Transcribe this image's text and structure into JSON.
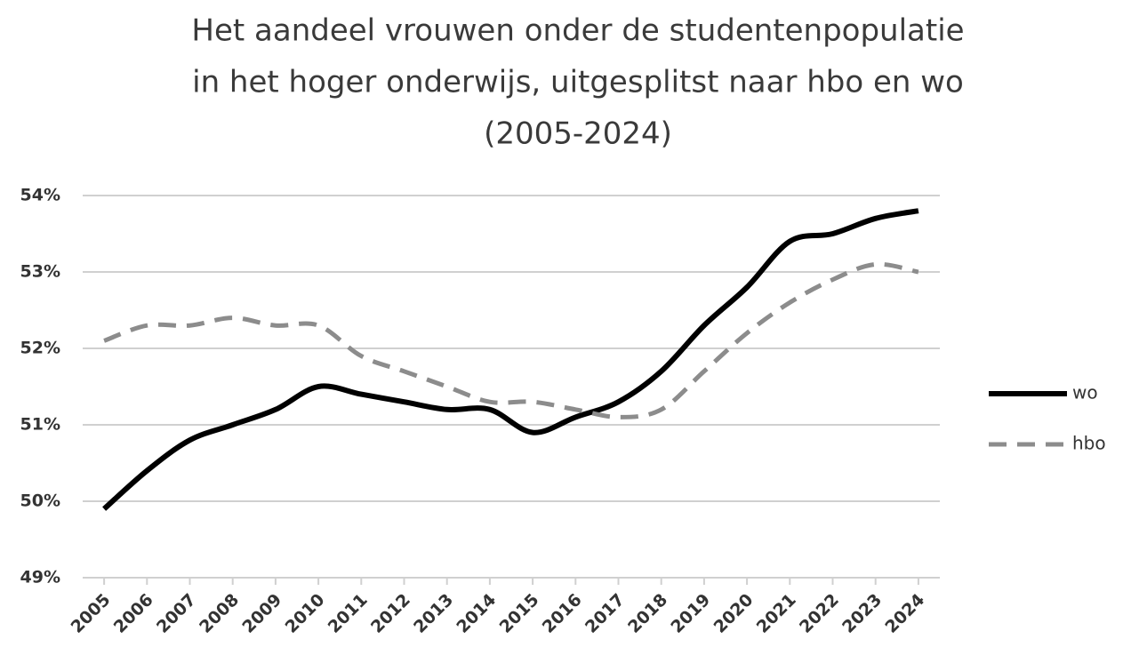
{
  "chart_data": {
    "type": "line",
    "title": [
      "Het aandeel vrouwen onder de studentenpopulatie",
      "in het hoger onderwijs, uitgesplitst naar hbo en wo",
      "(2005-2024)"
    ],
    "categories": [
      "2005",
      "2006",
      "2007",
      "2008",
      "2009",
      "2010",
      "2011",
      "2012",
      "2013",
      "2014",
      "2015",
      "2016",
      "2017",
      "2018",
      "2019",
      "2020",
      "2021",
      "2022",
      "2023",
      "2024"
    ],
    "series": [
      {
        "name": "wo",
        "color": "#000000",
        "dash": false,
        "values": [
          49.9,
          50.4,
          50.8,
          51.0,
          51.2,
          51.5,
          51.4,
          51.3,
          51.2,
          51.2,
          50.9,
          51.1,
          51.3,
          51.7,
          52.3,
          52.8,
          53.4,
          53.5,
          53.7,
          53.8
        ]
      },
      {
        "name": "hbo",
        "color": "#8c8c8c",
        "dash": true,
        "values": [
          52.1,
          52.3,
          52.3,
          52.4,
          52.3,
          52.3,
          51.9,
          51.7,
          51.5,
          51.3,
          51.3,
          51.2,
          51.1,
          51.2,
          51.7,
          52.2,
          52.6,
          52.9,
          53.1,
          53.0
        ]
      }
    ],
    "ylim": [
      49,
      54
    ],
    "yticks": [
      {
        "value": 49,
        "label": "49%"
      },
      {
        "value": 50,
        "label": "50%"
      },
      {
        "value": 51,
        "label": "51%"
      },
      {
        "value": 52,
        "label": "52%"
      },
      {
        "value": 53,
        "label": "53%"
      },
      {
        "value": 54,
        "label": "54%"
      }
    ],
    "grid": true,
    "smooth": true,
    "legend": "right"
  }
}
